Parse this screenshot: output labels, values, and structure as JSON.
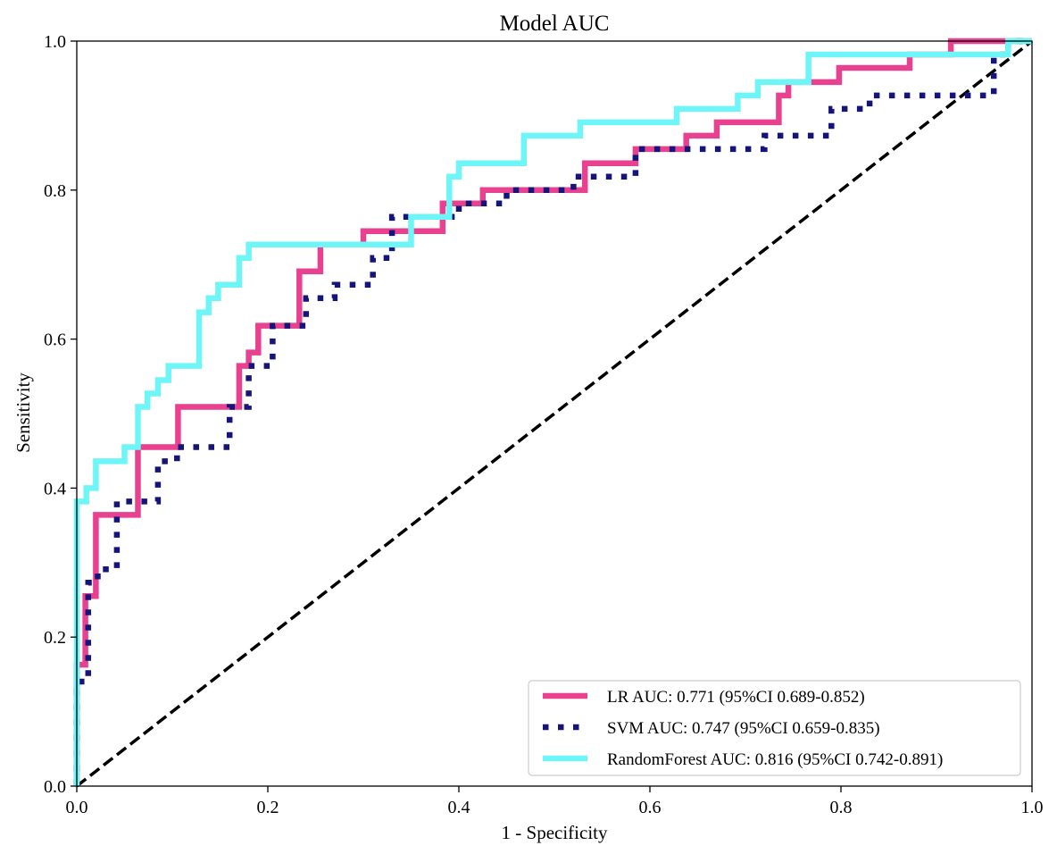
{
  "chart_data": {
    "type": "line",
    "title": "Model AUC",
    "xlabel": "1 - Specificity",
    "ylabel": "Sensitivity",
    "xlim": [
      0.0,
      1.0
    ],
    "ylim": [
      0.0,
      1.0
    ],
    "xticks": [
      "0.0",
      "0.2",
      "0.4",
      "0.6",
      "0.8",
      "1.0"
    ],
    "yticks": [
      "0.0",
      "0.2",
      "0.4",
      "0.6",
      "0.8",
      "1.0"
    ],
    "grid": false,
    "legend_position": "lower-right",
    "reference_line": {
      "x": [
        0,
        1
      ],
      "y": [
        0,
        1
      ],
      "color": "#000000",
      "style": "dashed"
    },
    "series": [
      {
        "name": "LR AUC: 0.771 (95%CI 0.689-0.852)",
        "color": "#E8418F",
        "style": "solid",
        "x": [
          0.0,
          0.0,
          0.009,
          0.009,
          0.02,
          0.02,
          0.064,
          0.064,
          0.106,
          0.106,
          0.17,
          0.17,
          0.18,
          0.18,
          0.19,
          0.19,
          0.233,
          0.233,
          0.255,
          0.255,
          0.3,
          0.3,
          0.35,
          0.35,
          0.383,
          0.383,
          0.4,
          0.4,
          0.425,
          0.425,
          0.532,
          0.532,
          0.585,
          0.585,
          0.638,
          0.638,
          0.67,
          0.67,
          0.735,
          0.735,
          0.745,
          0.745,
          0.798,
          0.798,
          0.872,
          0.872,
          0.915,
          0.915,
          1.0
        ],
        "y": [
          0.0,
          0.163,
          0.163,
          0.255,
          0.255,
          0.364,
          0.364,
          0.455,
          0.455,
          0.509,
          0.509,
          0.564,
          0.564,
          0.582,
          0.582,
          0.618,
          0.618,
          0.691,
          0.691,
          0.727,
          0.727,
          0.745,
          0.745,
          0.745,
          0.745,
          0.782,
          0.782,
          0.782,
          0.782,
          0.8,
          0.8,
          0.836,
          0.836,
          0.855,
          0.855,
          0.873,
          0.873,
          0.891,
          0.891,
          0.927,
          0.927,
          0.945,
          0.945,
          0.964,
          0.964,
          0.982,
          0.982,
          1.0,
          1.0
        ]
      },
      {
        "name": "SVM AUC: 0.747 (95%CI 0.659-0.835)",
        "color": "#14147A",
        "style": "dotted",
        "x": [
          0.0,
          0.0,
          0.005,
          0.005,
          0.012,
          0.012,
          0.022,
          0.022,
          0.042,
          0.042,
          0.085,
          0.085,
          0.105,
          0.105,
          0.16,
          0.16,
          0.18,
          0.18,
          0.205,
          0.205,
          0.24,
          0.24,
          0.27,
          0.27,
          0.31,
          0.31,
          0.33,
          0.33,
          0.35,
          0.35,
          0.4,
          0.4,
          0.45,
          0.45,
          0.52,
          0.52,
          0.585,
          0.585,
          0.72,
          0.72,
          0.79,
          0.79,
          0.83,
          0.83,
          0.96,
          0.96,
          0.975,
          0.975,
          1.0
        ],
        "y": [
          0.0,
          0.127,
          0.127,
          0.145,
          0.145,
          0.273,
          0.273,
          0.291,
          0.291,
          0.382,
          0.382,
          0.436,
          0.436,
          0.455,
          0.455,
          0.509,
          0.509,
          0.564,
          0.564,
          0.618,
          0.618,
          0.655,
          0.655,
          0.673,
          0.673,
          0.709,
          0.709,
          0.764,
          0.764,
          0.764,
          0.764,
          0.782,
          0.782,
          0.8,
          0.8,
          0.818,
          0.818,
          0.855,
          0.855,
          0.873,
          0.873,
          0.909,
          0.909,
          0.927,
          0.927,
          0.982,
          0.982,
          1.0,
          1.0
        ]
      },
      {
        "name": "RandomForest AUC: 0.816 (95%CI 0.742-0.891)",
        "color": "#6EF5F7",
        "style": "solid",
        "x": [
          0.0,
          0.0,
          0.002,
          0.002,
          0.01,
          0.01,
          0.02,
          0.02,
          0.05,
          0.05,
          0.064,
          0.064,
          0.074,
          0.074,
          0.085,
          0.085,
          0.096,
          0.096,
          0.128,
          0.128,
          0.138,
          0.138,
          0.148,
          0.148,
          0.17,
          0.17,
          0.18,
          0.18,
          0.35,
          0.35,
          0.39,
          0.39,
          0.4,
          0.4,
          0.468,
          0.468,
          0.527,
          0.527,
          0.628,
          0.628,
          0.692,
          0.692,
          0.713,
          0.713,
          0.766,
          0.766,
          0.975,
          0.975,
          1.0
        ],
        "y": [
          0.0,
          0.382,
          0.382,
          0.382,
          0.382,
          0.4,
          0.4,
          0.436,
          0.436,
          0.455,
          0.455,
          0.509,
          0.509,
          0.527,
          0.527,
          0.545,
          0.545,
          0.564,
          0.564,
          0.636,
          0.636,
          0.655,
          0.655,
          0.673,
          0.673,
          0.709,
          0.709,
          0.727,
          0.727,
          0.764,
          0.764,
          0.818,
          0.818,
          0.836,
          0.836,
          0.873,
          0.873,
          0.891,
          0.891,
          0.909,
          0.909,
          0.927,
          0.927,
          0.945,
          0.945,
          0.982,
          0.982,
          1.0,
          1.0
        ]
      }
    ]
  }
}
